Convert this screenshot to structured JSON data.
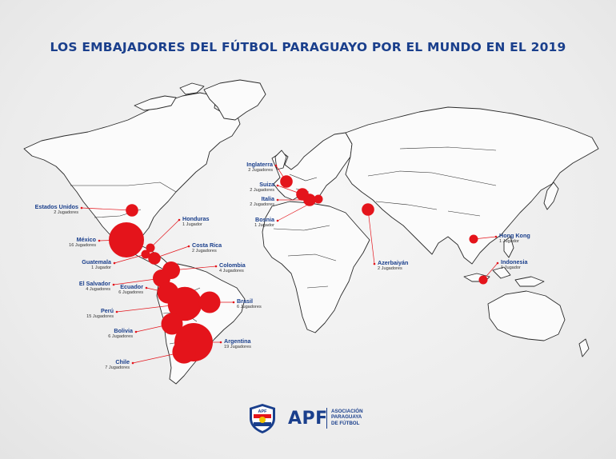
{
  "title": "LOS EMBAJADORES DEL FÚTBOL PARAGUAYO POR EL MUNDO EN EL 2019",
  "colors": {
    "title": "#1a3f8c",
    "bubble": "#e4141b",
    "background": "#efefef"
  },
  "countries": [
    {
      "id": "inglaterra",
      "name": "Inglaterra",
      "count": "2 Jugadores",
      "players": 2
    },
    {
      "id": "suiza",
      "name": "Suiza",
      "count": "2 Jugadores",
      "players": 2
    },
    {
      "id": "italia",
      "name": "Italia",
      "count": "2 Jugadores",
      "players": 2
    },
    {
      "id": "bosnia",
      "name": "Bosnia",
      "count": "1 Jugador",
      "players": 1
    },
    {
      "id": "estados-unidos",
      "name": "Estados Unidos",
      "count": "2 Jugadores",
      "players": 2
    },
    {
      "id": "honduras",
      "name": "Honduras",
      "count": "1 Jugador",
      "players": 1
    },
    {
      "id": "mexico",
      "name": "México",
      "count": "16 Jugadores",
      "players": 16
    },
    {
      "id": "costa-rica",
      "name": "Costa Rica",
      "count": "2 Jugadores",
      "players": 2
    },
    {
      "id": "guatemala",
      "name": "Guatemala",
      "count": "1 Jugador",
      "players": 1
    },
    {
      "id": "colombia",
      "name": "Colombia",
      "count": "4 Jugadores",
      "players": 4
    },
    {
      "id": "el-salvador",
      "name": "El Salvador",
      "count": "4 Jugadores",
      "players": 4
    },
    {
      "id": "ecuador",
      "name": "Ecuador",
      "count": "6 Jugadores",
      "players": 6
    },
    {
      "id": "peru",
      "name": "Perú",
      "count": "15 Jugadores",
      "players": 15
    },
    {
      "id": "brasil",
      "name": "Brasil",
      "count": "6 Jugadores",
      "players": 6
    },
    {
      "id": "bolivia",
      "name": "Bolivia",
      "count": "6 Jugadores",
      "players": 6
    },
    {
      "id": "argentina",
      "name": "Argentina",
      "count": "19 Jugadores",
      "players": 19
    },
    {
      "id": "chile",
      "name": "Chile",
      "count": "7 Jugadores",
      "players": 7
    },
    {
      "id": "azerbaiyan",
      "name": "Azerbaiyán",
      "count": "2 Jugadores",
      "players": 2
    },
    {
      "id": "hong-kong",
      "name": "Hong Kong",
      "count": "1 Jugador",
      "players": 1
    },
    {
      "id": "indonesia",
      "name": "Indonesia",
      "count": "1 Jugador",
      "players": 1
    }
  ],
  "logo": {
    "acronym": "APF",
    "badge": "APF",
    "full_name_line1": "ASOCIACIÓN",
    "full_name_line2": "PARAGUAYA",
    "full_name_line3": "DE FÚTBOL"
  }
}
